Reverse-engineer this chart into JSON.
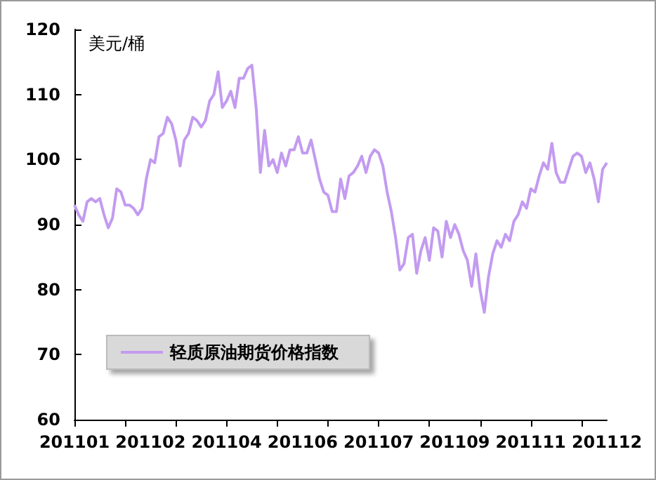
{
  "chart_data": {
    "type": "line",
    "ylabel": "美元/桶",
    "categories": [
      "201101",
      null,
      null,
      null,
      null,
      null,
      null,
      null,
      null,
      null,
      null,
      null,
      null,
      null,
      null,
      null,
      null,
      null,
      "201102",
      null,
      null,
      null,
      null,
      null,
      null,
      null,
      null,
      null,
      null,
      null,
      null,
      null,
      null,
      null,
      null,
      null,
      "201104",
      null,
      null,
      null,
      null,
      null,
      null,
      null,
      null,
      null,
      null,
      null,
      null,
      null,
      null,
      null,
      null,
      null,
      "201106",
      null,
      null,
      null,
      null,
      null,
      null,
      null,
      null,
      null,
      null,
      null,
      null,
      null,
      null,
      null,
      null,
      null,
      "201107",
      null,
      null,
      null,
      null,
      null,
      null,
      null,
      null,
      null,
      null,
      null,
      null,
      null,
      null,
      null,
      null,
      null,
      "201109",
      null,
      null,
      null,
      null,
      null,
      null,
      null,
      null,
      null,
      null,
      null,
      null,
      null,
      null,
      null,
      null,
      null,
      "201111",
      null,
      null,
      null,
      null,
      null,
      null,
      null,
      null,
      null,
      null,
      null,
      null,
      null,
      null,
      null,
      null,
      null,
      "201112"
    ],
    "series": [
      {
        "name": "轻质原油期货价格指数",
        "color": "#c39bf0",
        "values": [
          93,
          91.5,
          90.5,
          93.5,
          94,
          93.5,
          94,
          91.5,
          89.5,
          91,
          95.5,
          95,
          93,
          93,
          92.5,
          91.5,
          92.5,
          97,
          100,
          99.5,
          103.5,
          104,
          106.5,
          105.5,
          103,
          99,
          103,
          104,
          106.5,
          106,
          105,
          106,
          109,
          110,
          113.5,
          108,
          109,
          110.5,
          108,
          112.5,
          112.5,
          114,
          114.5,
          108,
          98,
          104.5,
          99,
          100,
          98,
          101,
          99,
          101.5,
          101.5,
          103.5,
          101,
          101,
          103,
          100,
          97,
          95,
          94.5,
          92,
          92,
          97,
          94,
          97.5,
          98,
          99,
          100.5,
          98,
          100.5,
          101.5,
          101,
          99,
          95,
          92,
          88,
          83,
          84,
          88,
          88.5,
          82.5,
          86,
          88,
          84.5,
          89.5,
          89,
          85,
          90.5,
          88,
          90,
          88.5,
          86,
          84.5,
          80.5,
          85.5,
          80,
          76.5,
          82,
          85.5,
          87.5,
          86.5,
          88.5,
          87.5,
          90.5,
          91.5,
          93.5,
          92.5,
          95.5,
          95,
          97.5,
          99.5,
          98.5,
          102.5,
          98,
          96.5,
          96.5,
          98.5,
          100.5,
          101,
          100.5,
          98,
          99.5,
          97,
          93.5,
          98.5,
          99.5
        ]
      }
    ],
    "ylim": [
      60,
      120
    ],
    "yticks": [
      60,
      70,
      80,
      90,
      100,
      110,
      120
    ],
    "grid": false,
    "legend": "bottom left",
    "marker": "none",
    "line_style": "solid"
  }
}
